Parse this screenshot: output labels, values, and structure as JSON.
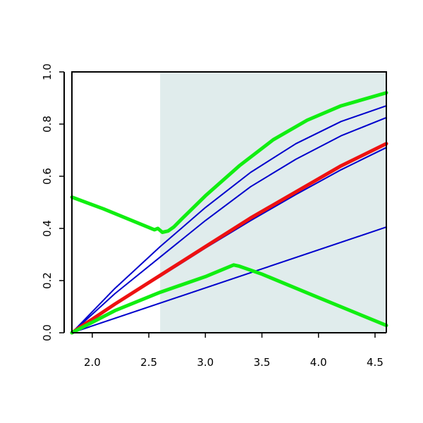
{
  "chart_data": {
    "type": "line",
    "title": "",
    "xlabel": "",
    "ylabel": "",
    "xlim": [
      1.82,
      4.6
    ],
    "ylim": [
      0,
      1.0
    ],
    "x_ticks": [
      2.0,
      2.5,
      3.0,
      3.5,
      4.0,
      4.5
    ],
    "x_tick_labels": [
      "2.0",
      "2.5",
      "3.0",
      "3.5",
      "4.0",
      "4.5"
    ],
    "y_ticks": [
      0.0,
      0.2,
      0.4,
      0.6,
      0.8,
      1.0
    ],
    "y_tick_labels": [
      "0.0",
      "0.2",
      "0.4",
      "0.6",
      "0.8",
      "1.0"
    ],
    "shaded_region": {
      "x_from": 2.6,
      "x_to": 4.6,
      "color": "#e0ecec"
    },
    "grid": false,
    "series": [
      {
        "color": "#0000cc",
        "width": "thin",
        "x": [
          1.82,
          4.6
        ],
        "y": [
          0.0,
          0.405
        ]
      },
      {
        "color": "#0000cc",
        "width": "thin",
        "x": [
          1.82,
          2.2,
          2.6,
          3.0,
          3.4,
          3.8,
          4.2,
          4.6
        ],
        "y": [
          0.0,
          0.11,
          0.215,
          0.325,
          0.43,
          0.53,
          0.625,
          0.71
        ]
      },
      {
        "color": "#0000cc",
        "width": "thin",
        "x": [
          1.82,
          2.2,
          2.6,
          3.0,
          3.4,
          3.8,
          4.2,
          4.6
        ],
        "y": [
          0.0,
          0.15,
          0.29,
          0.43,
          0.56,
          0.665,
          0.755,
          0.825
        ]
      },
      {
        "color": "#0000cc",
        "width": "thin",
        "x": [
          1.82,
          2.2,
          2.6,
          3.0,
          3.4,
          3.8,
          4.2,
          4.6
        ],
        "y": [
          0.0,
          0.17,
          0.33,
          0.48,
          0.615,
          0.725,
          0.81,
          0.87
        ]
      },
      {
        "color": "#ee1111",
        "width": "thick",
        "x": [
          1.82,
          2.2,
          2.6,
          3.0,
          3.4,
          3.8,
          4.2,
          4.6
        ],
        "y": [
          0.0,
          0.11,
          0.22,
          0.33,
          0.44,
          0.54,
          0.64,
          0.725
        ]
      },
      {
        "color": "#11ee11",
        "width": "thick",
        "x": [
          1.82,
          2.1,
          2.55,
          2.58,
          2.62,
          2.67,
          2.72,
          2.8,
          3.0,
          3.3,
          3.6,
          3.9,
          4.2,
          4.6
        ],
        "y": [
          0.52,
          0.475,
          0.395,
          0.4,
          0.385,
          0.39,
          0.405,
          0.44,
          0.525,
          0.64,
          0.74,
          0.815,
          0.87,
          0.92
        ]
      },
      {
        "color": "#11ee11",
        "width": "thick",
        "x": [
          1.82,
          2.2,
          2.6,
          3.0,
          3.25,
          3.3,
          3.5,
          4.0,
          4.6
        ],
        "y": [
          0.0,
          0.085,
          0.155,
          0.215,
          0.26,
          0.255,
          0.225,
          0.135,
          0.028
        ]
      }
    ]
  }
}
